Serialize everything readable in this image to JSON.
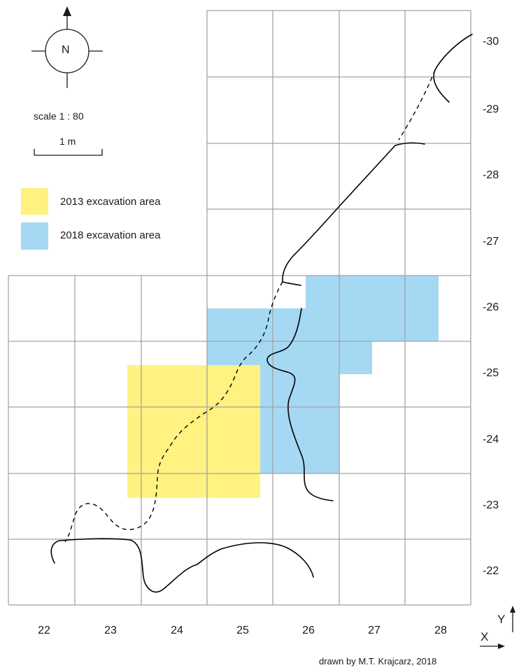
{
  "north": {
    "label": "N"
  },
  "scale": {
    "text": "scale  1 : 80",
    "bar_label": "1 m"
  },
  "legend": {
    "items": [
      {
        "label": "2013 excavation area",
        "color": "#fff280"
      },
      {
        "label": "2018 excavation area",
        "color": "#a5d8f3"
      }
    ]
  },
  "axes": {
    "x_name": "X",
    "y_name": "Y",
    "x_ticks": [
      "22",
      "23",
      "24",
      "25",
      "26",
      "27",
      "28"
    ],
    "y_ticks": [
      "-30",
      "-29",
      "-28",
      "-27",
      "-26",
      "-25",
      "-24",
      "-23",
      "-22"
    ]
  },
  "credit": "drawn by M.T. Krajcarz, 2018",
  "colors": {
    "grid": "#a3a3a3",
    "lines": "#000000"
  }
}
